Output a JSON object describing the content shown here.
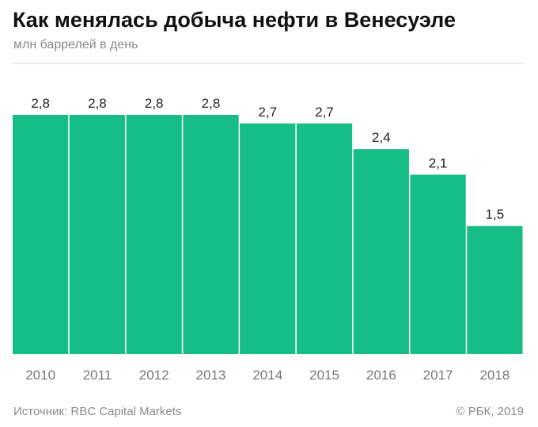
{
  "header": {
    "title": "Как менялась добыча нефти в Венесуэле",
    "subtitle": "млн баррелей в день"
  },
  "footer": {
    "source": "Источник: RBC Capital Markets",
    "copyright": "© РБК, 2019"
  },
  "colors": {
    "bar": "#17bd87",
    "label": "#222222",
    "tick": "#777777",
    "grid": "#d9d9d9"
  },
  "chart_data": {
    "type": "bar",
    "categories": [
      "2010",
      "2011",
      "2012",
      "2013",
      "2014",
      "2015",
      "2016",
      "2017",
      "2018"
    ],
    "values": [
      2.8,
      2.8,
      2.8,
      2.8,
      2.7,
      2.7,
      2.4,
      2.1,
      1.5
    ],
    "value_labels": [
      "2,8",
      "2,8",
      "2,8",
      "2,8",
      "2,7",
      "2,7",
      "2,4",
      "2,1",
      "1,5"
    ],
    "ylim": [
      0,
      2.8
    ],
    "grid": false,
    "legend": "none"
  }
}
